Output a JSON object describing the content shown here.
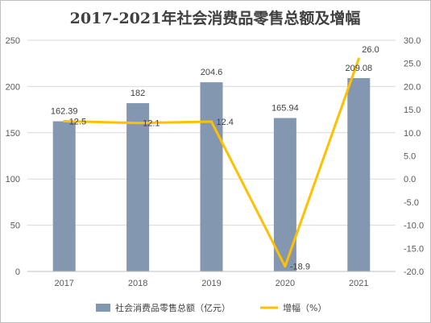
{
  "chart_data": {
    "type": "bar",
    "title": "2017-2021年社会消费品零售总额及增幅",
    "categories": [
      "2017",
      "2018",
      "2019",
      "2020",
      "2021"
    ],
    "series": [
      {
        "name": "社会消费品零售总额（亿元）",
        "type": "bar",
        "axis": "left",
        "color": "#8497b0",
        "values": [
          162.39,
          182,
          204.6,
          165.94,
          209.08
        ],
        "labels": [
          "162.39",
          "182",
          "204.6",
          "165.94",
          "209.08"
        ]
      },
      {
        "name": "增幅（%）",
        "type": "line",
        "axis": "right",
        "color": "#ffc000",
        "values": [
          12.5,
          12.1,
          12.4,
          -18.9,
          26.0
        ],
        "labels": [
          "12.5",
          "12.1",
          "12.4",
          "-18.9",
          "26.0"
        ]
      }
    ],
    "y_left": {
      "ylim": [
        0,
        250
      ],
      "ticks": [
        "0",
        "50",
        "100",
        "150",
        "200",
        "250"
      ]
    },
    "y_right": {
      "ylim": [
        -20,
        30
      ],
      "ticks": [
        "-20.0",
        "-15.0",
        "-10.0",
        "-5.0",
        "0.0",
        "5.0",
        "10.0",
        "15.0",
        "20.0",
        "25.0",
        "30.0"
      ]
    },
    "grid": true,
    "legend": "bottom"
  }
}
